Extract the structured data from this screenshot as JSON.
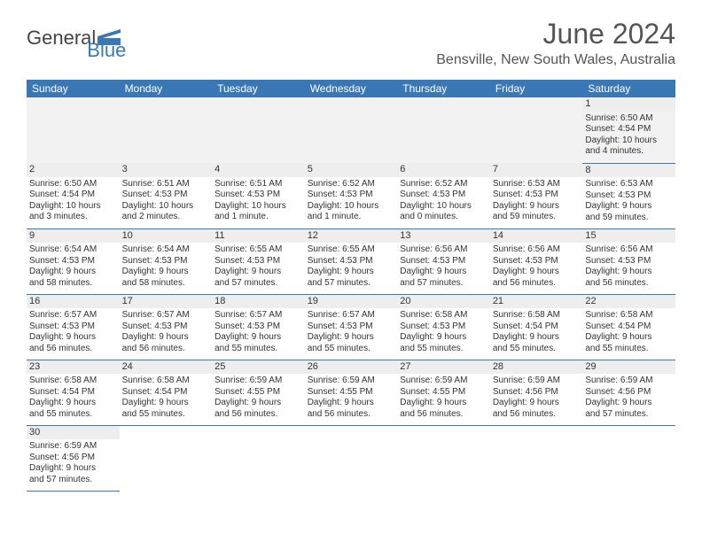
{
  "colors": {
    "accent": "#3a78b5",
    "text": "#333333",
    "muted": "#555555",
    "row_alt": "#f2f2f2",
    "daynum_bg": "#eeeeee"
  },
  "logo": {
    "text1": "General",
    "text2": "Blue",
    "icon_color": "#3a78b5"
  },
  "title": "June 2024",
  "location": "Bensville, New South Wales, Australia",
  "day_headers": [
    "Sunday",
    "Monday",
    "Tuesday",
    "Wednesday",
    "Thursday",
    "Friday",
    "Saturday"
  ],
  "weeks": [
    [
      null,
      null,
      null,
      null,
      null,
      null,
      {
        "n": "1",
        "sunrise": "Sunrise: 6:50 AM",
        "sunset": "Sunset: 4:54 PM",
        "daylight1": "Daylight: 10 hours",
        "daylight2": "and 4 minutes."
      }
    ],
    [
      {
        "n": "2",
        "sunrise": "Sunrise: 6:50 AM",
        "sunset": "Sunset: 4:54 PM",
        "daylight1": "Daylight: 10 hours",
        "daylight2": "and 3 minutes."
      },
      {
        "n": "3",
        "sunrise": "Sunrise: 6:51 AM",
        "sunset": "Sunset: 4:53 PM",
        "daylight1": "Daylight: 10 hours",
        "daylight2": "and 2 minutes."
      },
      {
        "n": "4",
        "sunrise": "Sunrise: 6:51 AM",
        "sunset": "Sunset: 4:53 PM",
        "daylight1": "Daylight: 10 hours",
        "daylight2": "and 1 minute."
      },
      {
        "n": "5",
        "sunrise": "Sunrise: 6:52 AM",
        "sunset": "Sunset: 4:53 PM",
        "daylight1": "Daylight: 10 hours",
        "daylight2": "and 1 minute."
      },
      {
        "n": "6",
        "sunrise": "Sunrise: 6:52 AM",
        "sunset": "Sunset: 4:53 PM",
        "daylight1": "Daylight: 10 hours",
        "daylight2": "and 0 minutes."
      },
      {
        "n": "7",
        "sunrise": "Sunrise: 6:53 AM",
        "sunset": "Sunset: 4:53 PM",
        "daylight1": "Daylight: 9 hours",
        "daylight2": "and 59 minutes."
      },
      {
        "n": "8",
        "sunrise": "Sunrise: 6:53 AM",
        "sunset": "Sunset: 4:53 PM",
        "daylight1": "Daylight: 9 hours",
        "daylight2": "and 59 minutes."
      }
    ],
    [
      {
        "n": "9",
        "sunrise": "Sunrise: 6:54 AM",
        "sunset": "Sunset: 4:53 PM",
        "daylight1": "Daylight: 9 hours",
        "daylight2": "and 58 minutes."
      },
      {
        "n": "10",
        "sunrise": "Sunrise: 6:54 AM",
        "sunset": "Sunset: 4:53 PM",
        "daylight1": "Daylight: 9 hours",
        "daylight2": "and 58 minutes."
      },
      {
        "n": "11",
        "sunrise": "Sunrise: 6:55 AM",
        "sunset": "Sunset: 4:53 PM",
        "daylight1": "Daylight: 9 hours",
        "daylight2": "and 57 minutes."
      },
      {
        "n": "12",
        "sunrise": "Sunrise: 6:55 AM",
        "sunset": "Sunset: 4:53 PM",
        "daylight1": "Daylight: 9 hours",
        "daylight2": "and 57 minutes."
      },
      {
        "n": "13",
        "sunrise": "Sunrise: 6:56 AM",
        "sunset": "Sunset: 4:53 PM",
        "daylight1": "Daylight: 9 hours",
        "daylight2": "and 57 minutes."
      },
      {
        "n": "14",
        "sunrise": "Sunrise: 6:56 AM",
        "sunset": "Sunset: 4:53 PM",
        "daylight1": "Daylight: 9 hours",
        "daylight2": "and 56 minutes."
      },
      {
        "n": "15",
        "sunrise": "Sunrise: 6:56 AM",
        "sunset": "Sunset: 4:53 PM",
        "daylight1": "Daylight: 9 hours",
        "daylight2": "and 56 minutes."
      }
    ],
    [
      {
        "n": "16",
        "sunrise": "Sunrise: 6:57 AM",
        "sunset": "Sunset: 4:53 PM",
        "daylight1": "Daylight: 9 hours",
        "daylight2": "and 56 minutes."
      },
      {
        "n": "17",
        "sunrise": "Sunrise: 6:57 AM",
        "sunset": "Sunset: 4:53 PM",
        "daylight1": "Daylight: 9 hours",
        "daylight2": "and 56 minutes."
      },
      {
        "n": "18",
        "sunrise": "Sunrise: 6:57 AM",
        "sunset": "Sunset: 4:53 PM",
        "daylight1": "Daylight: 9 hours",
        "daylight2": "and 55 minutes."
      },
      {
        "n": "19",
        "sunrise": "Sunrise: 6:57 AM",
        "sunset": "Sunset: 4:53 PM",
        "daylight1": "Daylight: 9 hours",
        "daylight2": "and 55 minutes."
      },
      {
        "n": "20",
        "sunrise": "Sunrise: 6:58 AM",
        "sunset": "Sunset: 4:53 PM",
        "daylight1": "Daylight: 9 hours",
        "daylight2": "and 55 minutes."
      },
      {
        "n": "21",
        "sunrise": "Sunrise: 6:58 AM",
        "sunset": "Sunset: 4:54 PM",
        "daylight1": "Daylight: 9 hours",
        "daylight2": "and 55 minutes."
      },
      {
        "n": "22",
        "sunrise": "Sunrise: 6:58 AM",
        "sunset": "Sunset: 4:54 PM",
        "daylight1": "Daylight: 9 hours",
        "daylight2": "and 55 minutes."
      }
    ],
    [
      {
        "n": "23",
        "sunrise": "Sunrise: 6:58 AM",
        "sunset": "Sunset: 4:54 PM",
        "daylight1": "Daylight: 9 hours",
        "daylight2": "and 55 minutes."
      },
      {
        "n": "24",
        "sunrise": "Sunrise: 6:58 AM",
        "sunset": "Sunset: 4:54 PM",
        "daylight1": "Daylight: 9 hours",
        "daylight2": "and 55 minutes."
      },
      {
        "n": "25",
        "sunrise": "Sunrise: 6:59 AM",
        "sunset": "Sunset: 4:55 PM",
        "daylight1": "Daylight: 9 hours",
        "daylight2": "and 56 minutes."
      },
      {
        "n": "26",
        "sunrise": "Sunrise: 6:59 AM",
        "sunset": "Sunset: 4:55 PM",
        "daylight1": "Daylight: 9 hours",
        "daylight2": "and 56 minutes."
      },
      {
        "n": "27",
        "sunrise": "Sunrise: 6:59 AM",
        "sunset": "Sunset: 4:55 PM",
        "daylight1": "Daylight: 9 hours",
        "daylight2": "and 56 minutes."
      },
      {
        "n": "28",
        "sunrise": "Sunrise: 6:59 AM",
        "sunset": "Sunset: 4:56 PM",
        "daylight1": "Daylight: 9 hours",
        "daylight2": "and 56 minutes."
      },
      {
        "n": "29",
        "sunrise": "Sunrise: 6:59 AM",
        "sunset": "Sunset: 4:56 PM",
        "daylight1": "Daylight: 9 hours",
        "daylight2": "and 57 minutes."
      }
    ],
    [
      {
        "n": "30",
        "sunrise": "Sunrise: 6:59 AM",
        "sunset": "Sunset: 4:56 PM",
        "daylight1": "Daylight: 9 hours",
        "daylight2": "and 57 minutes."
      },
      null,
      null,
      null,
      null,
      null,
      null
    ]
  ]
}
